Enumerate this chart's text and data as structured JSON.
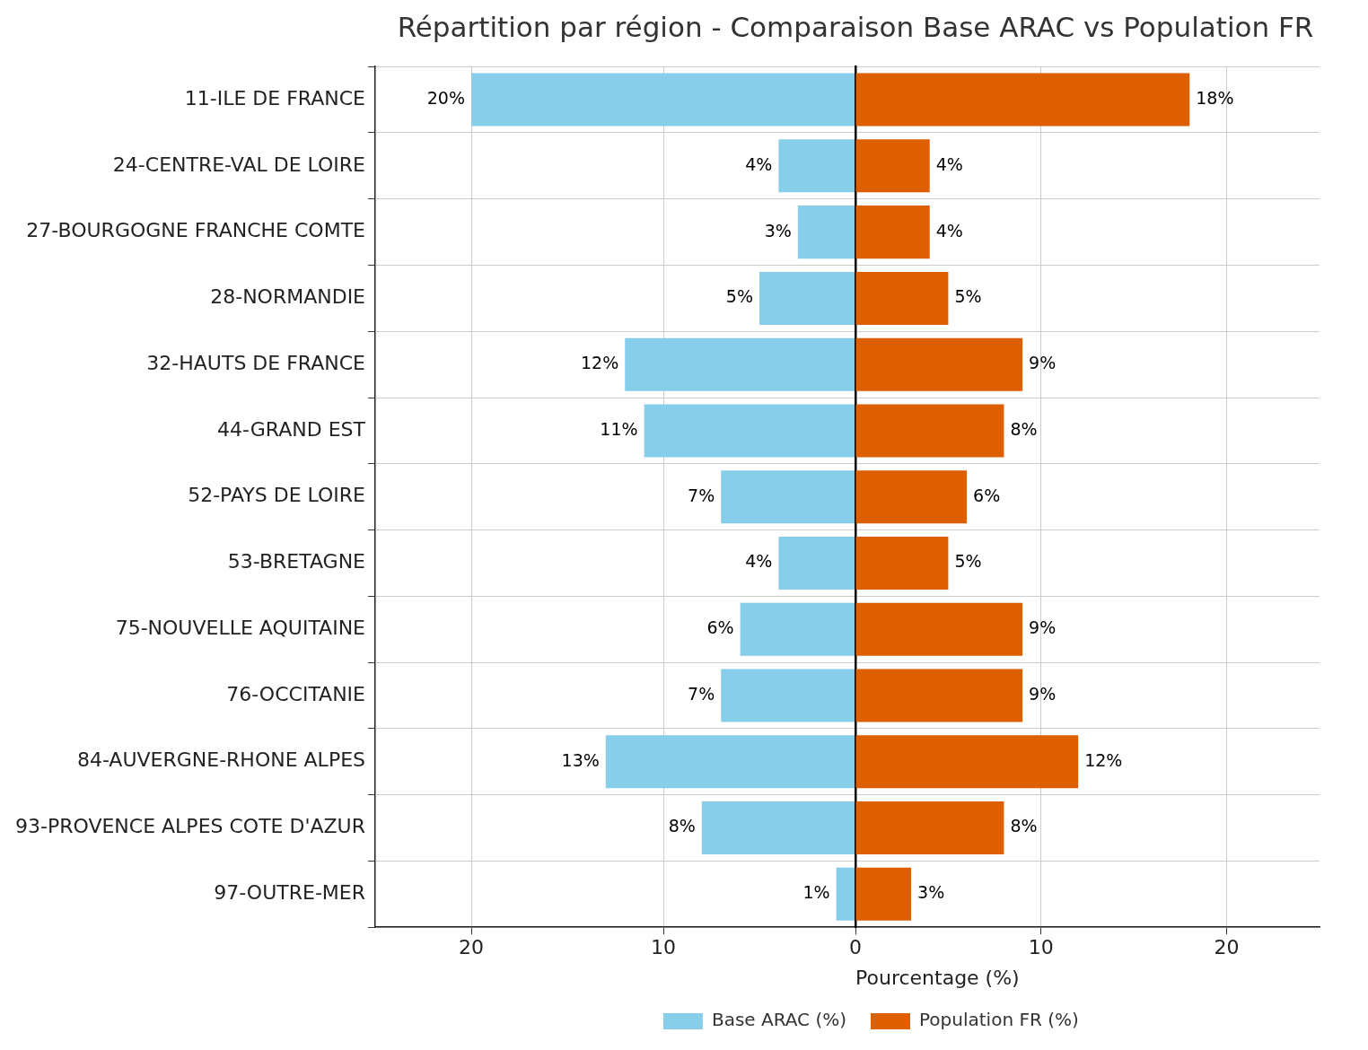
{
  "chart_data": [
    {
      "type": "bar",
      "title": "Répartition par région - Comparaison Base ARAC vs Population FR",
      "orientation": "horizontal",
      "categories": [
        "11-ILE DE FRANCE",
        "24-CENTRE-VAL DE LOIRE",
        "27-BOURGOGNE FRANCHE COMTE",
        "28-NORMANDIE",
        "32-HAUTS DE FRANCE",
        "44-GRAND EST",
        "52-PAYS DE LOIRE",
        "53-BRETAGNE",
        "75-NOUVELLE AQUITAINE",
        "76-OCCITANIE",
        "84-AUVERGNE-RHONE ALPES",
        "93-PROVENCE ALPES COTE D'AZUR",
        "97-OUTRE-MER"
      ],
      "series": [
        {
          "name": "Base ARAC (%)",
          "color": "#87ceeb",
          "values": [
            20,
            4,
            3,
            5,
            12,
            11,
            7,
            4,
            6,
            7,
            13,
            8,
            1
          ],
          "value_labels": [
            "20%",
            "4%",
            "3%",
            "5%",
            "12%",
            "11%",
            "7%",
            "4%",
            "6%",
            "7%",
            "13%",
            "8%",
            "1%"
          ]
        }
      ],
      "xlim": [
        25,
        0
      ],
      "xticks": [
        20,
        10,
        0
      ],
      "grid": true,
      "legend": "bottom"
    },
    {
      "type": "bar",
      "xlabel": "Pourcentage (%)",
      "orientation": "horizontal",
      "categories": [
        null,
        null,
        null,
        null,
        null,
        null,
        null,
        null,
        null,
        null,
        null,
        null,
        null
      ],
      "series": [
        {
          "name": "Population FR (%)",
          "color": "#dd5f00",
          "values": [
            18,
            4,
            4,
            5,
            9,
            8,
            6,
            5,
            9,
            9,
            12,
            8,
            3
          ],
          "value_labels": [
            "18%",
            "4%",
            "4%",
            "5%",
            "9%",
            "8%",
            "6%",
            "5%",
            "9%",
            "9%",
            "12%",
            "8%",
            "3%"
          ]
        }
      ],
      "xlim": [
        0,
        25
      ],
      "xticks": [
        {
          "value": 0,
          "label": null
        },
        10,
        20
      ],
      "tick_labels": "x",
      "grid": true,
      "legend": "bottom"
    }
  ]
}
